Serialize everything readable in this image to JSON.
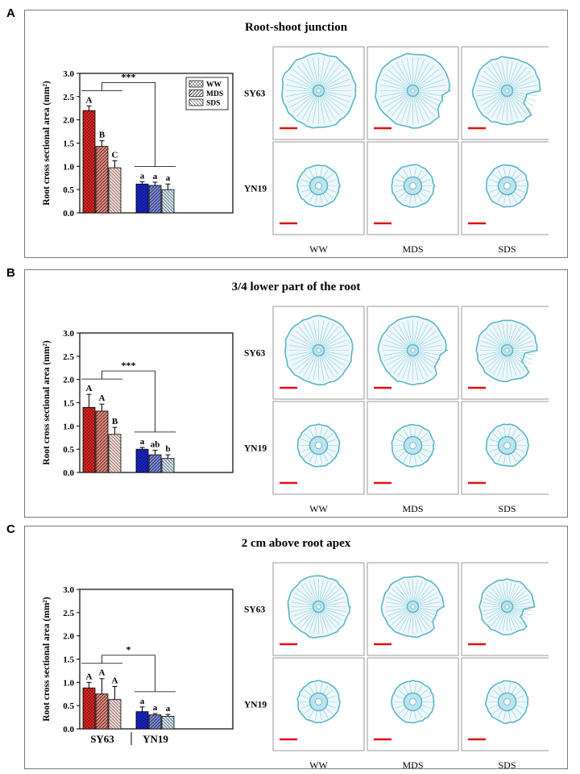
{
  "panels": [
    {
      "letter": "A",
      "title": "Root-shoot junction",
      "chart_data": {
        "type": "bar",
        "ylabel": "Root cross sectional area (mm²)",
        "ylim": [
          0,
          3.0
        ],
        "yticks": [
          "0.0",
          "0.5",
          "1.0",
          "1.5",
          "2.0",
          "2.5",
          "3.0"
        ],
        "groups": [
          "SY63",
          "YN19"
        ],
        "show_group_labels": false,
        "series": [
          {
            "name": "WW",
            "values": [
              2.2,
              0.62
            ],
            "errors": [
              0.1,
              0.05
            ],
            "letters": [
              "A",
              "a"
            ]
          },
          {
            "name": "MDS",
            "values": [
              1.43,
              0.59
            ],
            "errors": [
              0.12,
              0.07
            ],
            "letters": [
              "B",
              "a"
            ]
          },
          {
            "name": "SDS",
            "values": [
              0.97,
              0.5
            ],
            "errors": [
              0.15,
              0.12
            ],
            "letters": [
              "C",
              "a"
            ]
          }
        ],
        "significance": "***",
        "legend": "top-right"
      },
      "row_labels": [
        "SY63",
        "YN19"
      ],
      "col_labels": [
        "WW",
        "MDS",
        "SDS"
      ]
    },
    {
      "letter": "B",
      "title": "3/4 lower part of the root",
      "chart_data": {
        "type": "bar",
        "ylabel": "Root cross sectional area (mm²)",
        "ylim": [
          0,
          3.0
        ],
        "yticks": [
          "0.0",
          "0.5",
          "1.0",
          "1.5",
          "2.0",
          "2.5",
          "3.0"
        ],
        "groups": [
          "SY63",
          "YN19"
        ],
        "show_group_labels": false,
        "series": [
          {
            "name": "WW",
            "values": [
              1.4,
              0.5
            ],
            "errors": [
              0.28,
              0.04
            ],
            "letters": [
              "A",
              "a"
            ]
          },
          {
            "name": "MDS",
            "values": [
              1.32,
              0.38
            ],
            "errors": [
              0.15,
              0.1
            ],
            "letters": [
              "A",
              "ab"
            ]
          },
          {
            "name": "SDS",
            "values": [
              0.82,
              0.3
            ],
            "errors": [
              0.15,
              0.08
            ],
            "letters": [
              "B",
              "b"
            ]
          }
        ],
        "significance": "***",
        "legend": "none"
      },
      "row_labels": [
        "SY63",
        "YN19"
      ],
      "col_labels": [
        "WW",
        "MDS",
        "SDS"
      ]
    },
    {
      "letter": "C",
      "title": "2 cm above root apex",
      "chart_data": {
        "type": "bar",
        "ylabel": "Root cross sectional area (mm²)",
        "ylim": [
          0,
          3.0
        ],
        "yticks": [
          "0.0",
          "0.5",
          "1.0",
          "1.5",
          "2.0",
          "2.5",
          "3.0"
        ],
        "groups": [
          "SY63",
          "YN19"
        ],
        "show_group_labels": true,
        "series": [
          {
            "name": "WW",
            "values": [
              0.88,
              0.37
            ],
            "errors": [
              0.12,
              0.1
            ],
            "letters": [
              "A",
              "a"
            ]
          },
          {
            "name": "MDS",
            "values": [
              0.75,
              0.3
            ],
            "errors": [
              0.33,
              0.03
            ],
            "letters": [
              "A",
              "a"
            ]
          },
          {
            "name": "SDS",
            "values": [
              0.63,
              0.27
            ],
            "errors": [
              0.28,
              0.04
            ],
            "letters": [
              "A",
              "a"
            ]
          }
        ],
        "significance": "*",
        "legend": "none"
      },
      "row_labels": [
        "SY63",
        "YN19"
      ],
      "col_labels": [
        "WW",
        "MDS",
        "SDS"
      ]
    }
  ],
  "colors": {
    "sy63": "#e8231f",
    "yn19": "#1524d6",
    "light_blue": "#cfe2f3",
    "stain": "#57b6c9",
    "scale_bar": "#e01010"
  },
  "micrograph_content": "root cross-section micrograph"
}
